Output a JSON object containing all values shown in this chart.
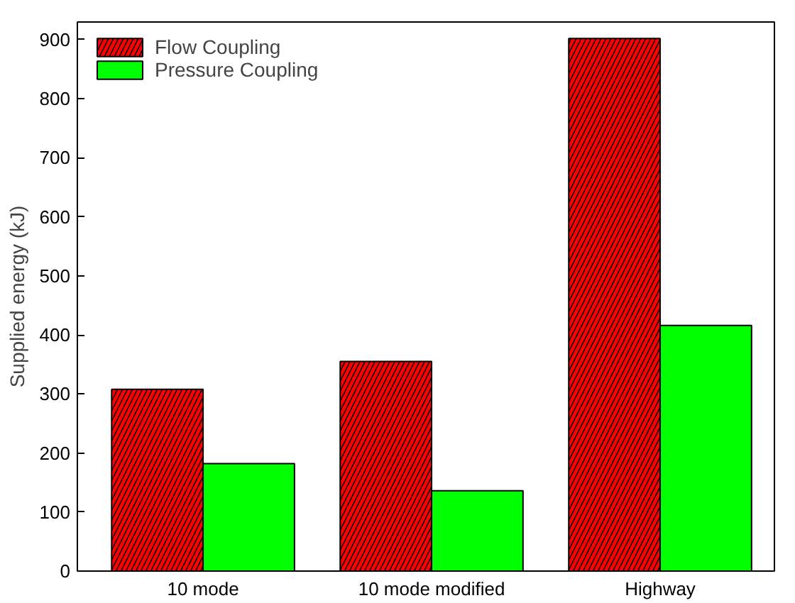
{
  "chart_data": {
    "type": "bar",
    "ylabel": "Supplied energy (kJ)",
    "categories": [
      "10 mode",
      "10 mode modified",
      "Highway"
    ],
    "series": [
      {
        "name": "Flow Coupling",
        "color": "#ff0000",
        "values": [
          308,
          355,
          902
        ]
      },
      {
        "name": "Pressure Coupling",
        "color": "#00ff00",
        "values": [
          182,
          136,
          416
        ]
      }
    ],
    "ylim": [
      0,
      930
    ],
    "yticks": [
      0,
      100,
      200,
      300,
      400,
      500,
      600,
      700,
      800,
      900
    ],
    "grid": false,
    "legend": "top left"
  }
}
